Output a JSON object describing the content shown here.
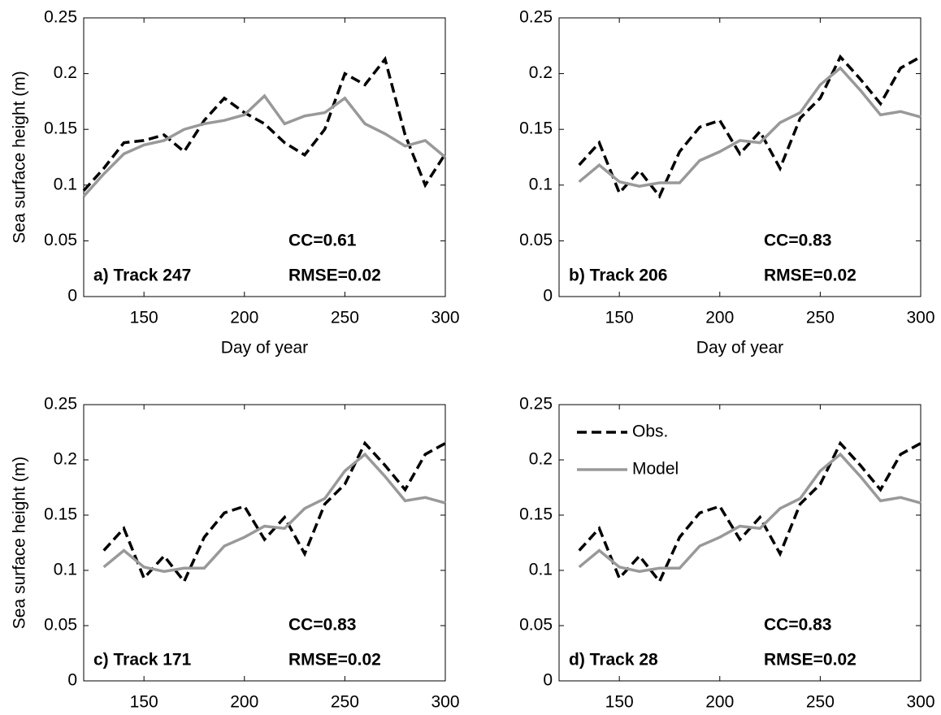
{
  "chart_data": [
    {
      "type": "line",
      "panel": "a) Track 247",
      "annotations": [
        "CC=0.61",
        "RMSE=0.02"
      ],
      "xlabel": "Day of year",
      "ylabel": "Sea surface height (m)",
      "x": [
        120,
        130,
        140,
        150,
        160,
        170,
        180,
        190,
        200,
        210,
        220,
        230,
        240,
        250,
        260,
        270,
        280,
        290,
        300
      ],
      "series": [
        {
          "color": "#000000",
          "linestyle": "--",
          "values": [
            0.095,
            0.115,
            0.138,
            0.14,
            0.145,
            0.13,
            0.158,
            0.178,
            0.165,
            0.155,
            0.138,
            0.127,
            0.15,
            0.2,
            0.19,
            0.213,
            0.145,
            0.1,
            0.128
          ]
        },
        {
          "color": "#999999",
          "linestyle": "-",
          "values": [
            0.09,
            0.11,
            0.128,
            0.136,
            0.14,
            0.15,
            0.155,
            0.158,
            0.163,
            0.18,
            0.155,
            0.162,
            0.165,
            0.178,
            0.155,
            0.146,
            0.135,
            0.14,
            0.125
          ]
        }
      ],
      "xlim": [
        120,
        300
      ],
      "ylim": [
        0,
        0.25
      ],
      "xticks": [
        150,
        200,
        250,
        300
      ],
      "yticks": [
        0,
        0.05,
        0.1,
        0.15,
        0.2,
        0.25
      ]
    },
    {
      "type": "line",
      "panel": "b) Track 206",
      "annotations": [
        "CC=0.83",
        "RMSE=0.02"
      ],
      "xlabel": "Day of year",
      "x": [
        130,
        140,
        150,
        160,
        170,
        180,
        190,
        200,
        210,
        220,
        230,
        240,
        250,
        260,
        270,
        280,
        290,
        300
      ],
      "series": [
        {
          "color": "#000000",
          "linestyle": "--",
          "values": [
            0.118,
            0.138,
            0.093,
            0.113,
            0.09,
            0.13,
            0.152,
            0.158,
            0.128,
            0.148,
            0.115,
            0.16,
            0.178,
            0.215,
            0.195,
            0.173,
            0.205,
            0.215
          ]
        },
        {
          "color": "#999999",
          "linestyle": "-",
          "values": [
            0.103,
            0.118,
            0.103,
            0.099,
            0.102,
            0.102,
            0.122,
            0.13,
            0.14,
            0.138,
            0.156,
            0.165,
            0.19,
            0.205,
            0.185,
            0.163,
            0.166,
            0.161
          ]
        }
      ],
      "xlim": [
        120,
        300
      ],
      "ylim": [
        0,
        0.25
      ],
      "xticks": [
        150,
        200,
        250,
        300
      ],
      "yticks": [
        0,
        0.05,
        0.1,
        0.15,
        0.2,
        0.25
      ]
    },
    {
      "type": "line",
      "panel": "c) Track 171",
      "annotations": [
        "CC=0.83",
        "RMSE=0.02"
      ],
      "ylabel": "Sea surface height (m)",
      "x": [
        130,
        140,
        150,
        160,
        170,
        180,
        190,
        200,
        210,
        220,
        230,
        240,
        250,
        260,
        270,
        280,
        290,
        300
      ],
      "series": [
        {
          "color": "#000000",
          "linestyle": "--",
          "values": [
            0.118,
            0.138,
            0.093,
            0.113,
            0.09,
            0.13,
            0.152,
            0.158,
            0.128,
            0.148,
            0.115,
            0.16,
            0.178,
            0.215,
            0.195,
            0.173,
            0.205,
            0.215
          ]
        },
        {
          "color": "#999999",
          "linestyle": "-",
          "values": [
            0.103,
            0.118,
            0.103,
            0.099,
            0.102,
            0.102,
            0.122,
            0.13,
            0.14,
            0.138,
            0.156,
            0.165,
            0.19,
            0.205,
            0.185,
            0.163,
            0.166,
            0.161
          ]
        }
      ],
      "xlim": [
        120,
        300
      ],
      "ylim": [
        0,
        0.25
      ],
      "xticks": [
        150,
        200,
        250,
        300
      ],
      "yticks": [
        0,
        0.05,
        0.1,
        0.15,
        0.2,
        0.25
      ]
    },
    {
      "type": "line",
      "panel": "d) Track 28",
      "annotations": [
        "CC=0.83",
        "RMSE=0.02"
      ],
      "legend": "upper left",
      "x": [
        130,
        140,
        150,
        160,
        170,
        180,
        190,
        200,
        210,
        220,
        230,
        240,
        250,
        260,
        270,
        280,
        290,
        300
      ],
      "series": [
        {
          "name": "Obs.",
          "color": "#000000",
          "linestyle": "--",
          "values": [
            0.118,
            0.138,
            0.093,
            0.113,
            0.09,
            0.13,
            0.152,
            0.158,
            0.128,
            0.148,
            0.115,
            0.16,
            0.178,
            0.215,
            0.195,
            0.173,
            0.205,
            0.215
          ]
        },
        {
          "name": "Model",
          "color": "#999999",
          "linestyle": "-",
          "values": [
            0.103,
            0.118,
            0.103,
            0.099,
            0.102,
            0.102,
            0.122,
            0.13,
            0.14,
            0.138,
            0.156,
            0.165,
            0.19,
            0.205,
            0.185,
            0.163,
            0.166,
            0.161
          ]
        }
      ],
      "xlim": [
        120,
        300
      ],
      "ylim": [
        0,
        0.25
      ],
      "xticks": [
        150,
        200,
        250,
        300
      ],
      "yticks": [
        0,
        0.05,
        0.1,
        0.15,
        0.2,
        0.25
      ]
    }
  ]
}
